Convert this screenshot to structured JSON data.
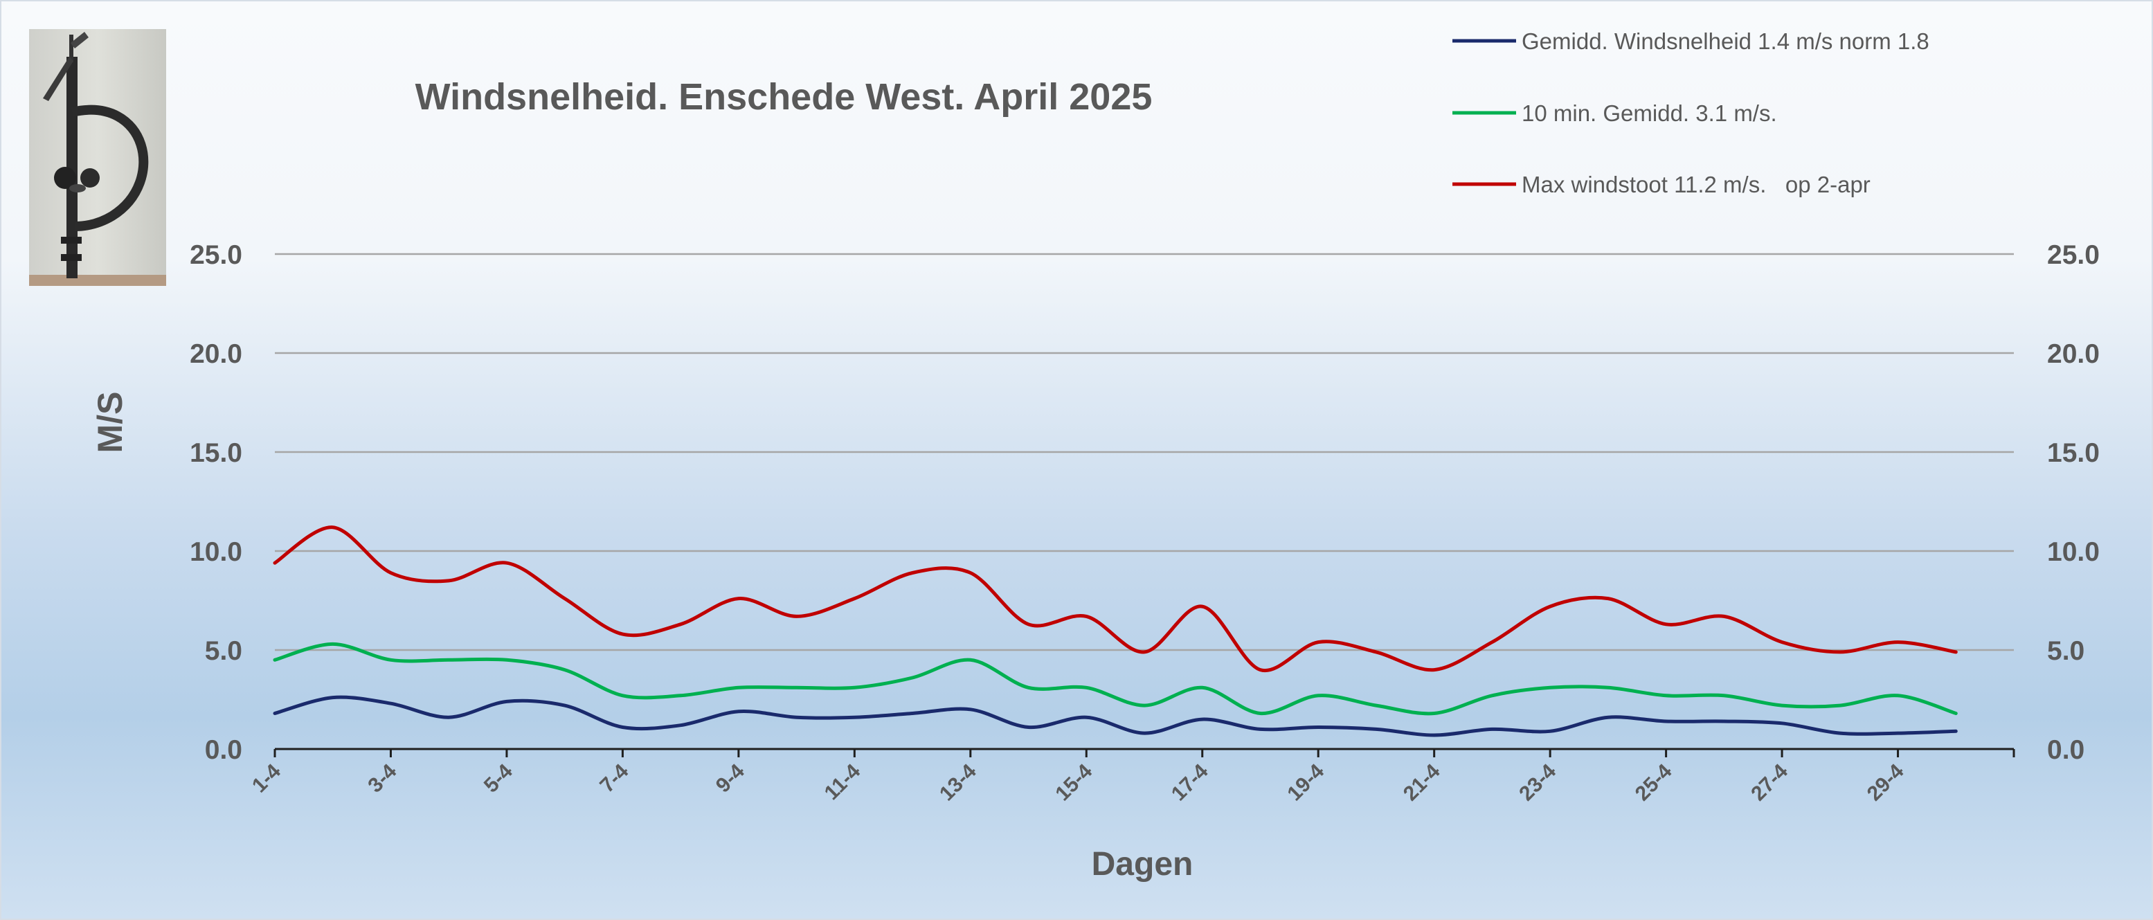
{
  "chart_data": {
    "type": "line",
    "title": "Windsnelheid. Enschede West. April 2025",
    "xlabel": "Dagen",
    "ylabel": "M/S",
    "ylim": [
      0,
      25
    ],
    "yticks": [
      "0.0",
      "5.0",
      "10.0",
      "15.0",
      "20.0",
      "25.0"
    ],
    "secondary_y_axis": true,
    "grid": true,
    "legend_position": "top-right",
    "x": [
      "1-4",
      "2-4",
      "3-4",
      "4-4",
      "5-4",
      "6-4",
      "7-4",
      "8-4",
      "9-4",
      "10-4",
      "11-4",
      "12-4",
      "13-4",
      "14-4",
      "15-4",
      "16-4",
      "17-4",
      "18-4",
      "19-4",
      "20-4",
      "21-4",
      "22-4",
      "23-4",
      "24-4",
      "25-4",
      "26-4",
      "27-4",
      "28-4",
      "29-4",
      "30-4"
    ],
    "xtick_labels": [
      "1-4",
      "3-4",
      "5-4",
      "7-4",
      "9-4",
      "11-4",
      "13-4",
      "15-4",
      "17-4",
      "19-4",
      "21-4",
      "23-4",
      "25-4",
      "27-4",
      "29-4"
    ],
    "series": [
      {
        "name": "Gemidd. Windsnelheid 1.4 m/s norm 1.8",
        "color": "#1a2a6c",
        "values": [
          1.8,
          2.6,
          2.3,
          1.6,
          2.4,
          2.2,
          1.1,
          1.2,
          1.9,
          1.6,
          1.6,
          1.8,
          2.0,
          1.1,
          1.6,
          0.8,
          1.5,
          1.0,
          1.1,
          1.0,
          0.7,
          1.0,
          0.9,
          1.6,
          1.4,
          1.4,
          1.3,
          0.8,
          0.8,
          0.9
        ]
      },
      {
        "name": "10 min. Gemidd. 3.1 m/s.",
        "color": "#00b050",
        "values": [
          4.5,
          5.3,
          4.5,
          4.5,
          4.5,
          4.0,
          2.7,
          2.7,
          3.1,
          3.1,
          3.1,
          3.6,
          4.5,
          3.1,
          3.1,
          2.2,
          3.1,
          1.8,
          2.7,
          2.2,
          1.8,
          2.7,
          3.1,
          3.1,
          2.7,
          2.7,
          2.2,
          2.2,
          2.7,
          1.8
        ]
      },
      {
        "name": "Max windstoot 11.2 m/s.   op 2-apr",
        "color": "#c00000",
        "values": [
          9.4,
          11.2,
          8.9,
          8.5,
          9.4,
          7.6,
          5.8,
          6.3,
          7.6,
          6.7,
          7.6,
          8.9,
          8.9,
          6.3,
          6.7,
          4.9,
          7.2,
          4.0,
          5.4,
          4.9,
          4.0,
          5.4,
          7.2,
          7.6,
          6.3,
          6.7,
          5.4,
          4.9,
          5.4,
          4.9
        ]
      }
    ]
  },
  "photo": {
    "icon": "anemometer-photo"
  }
}
